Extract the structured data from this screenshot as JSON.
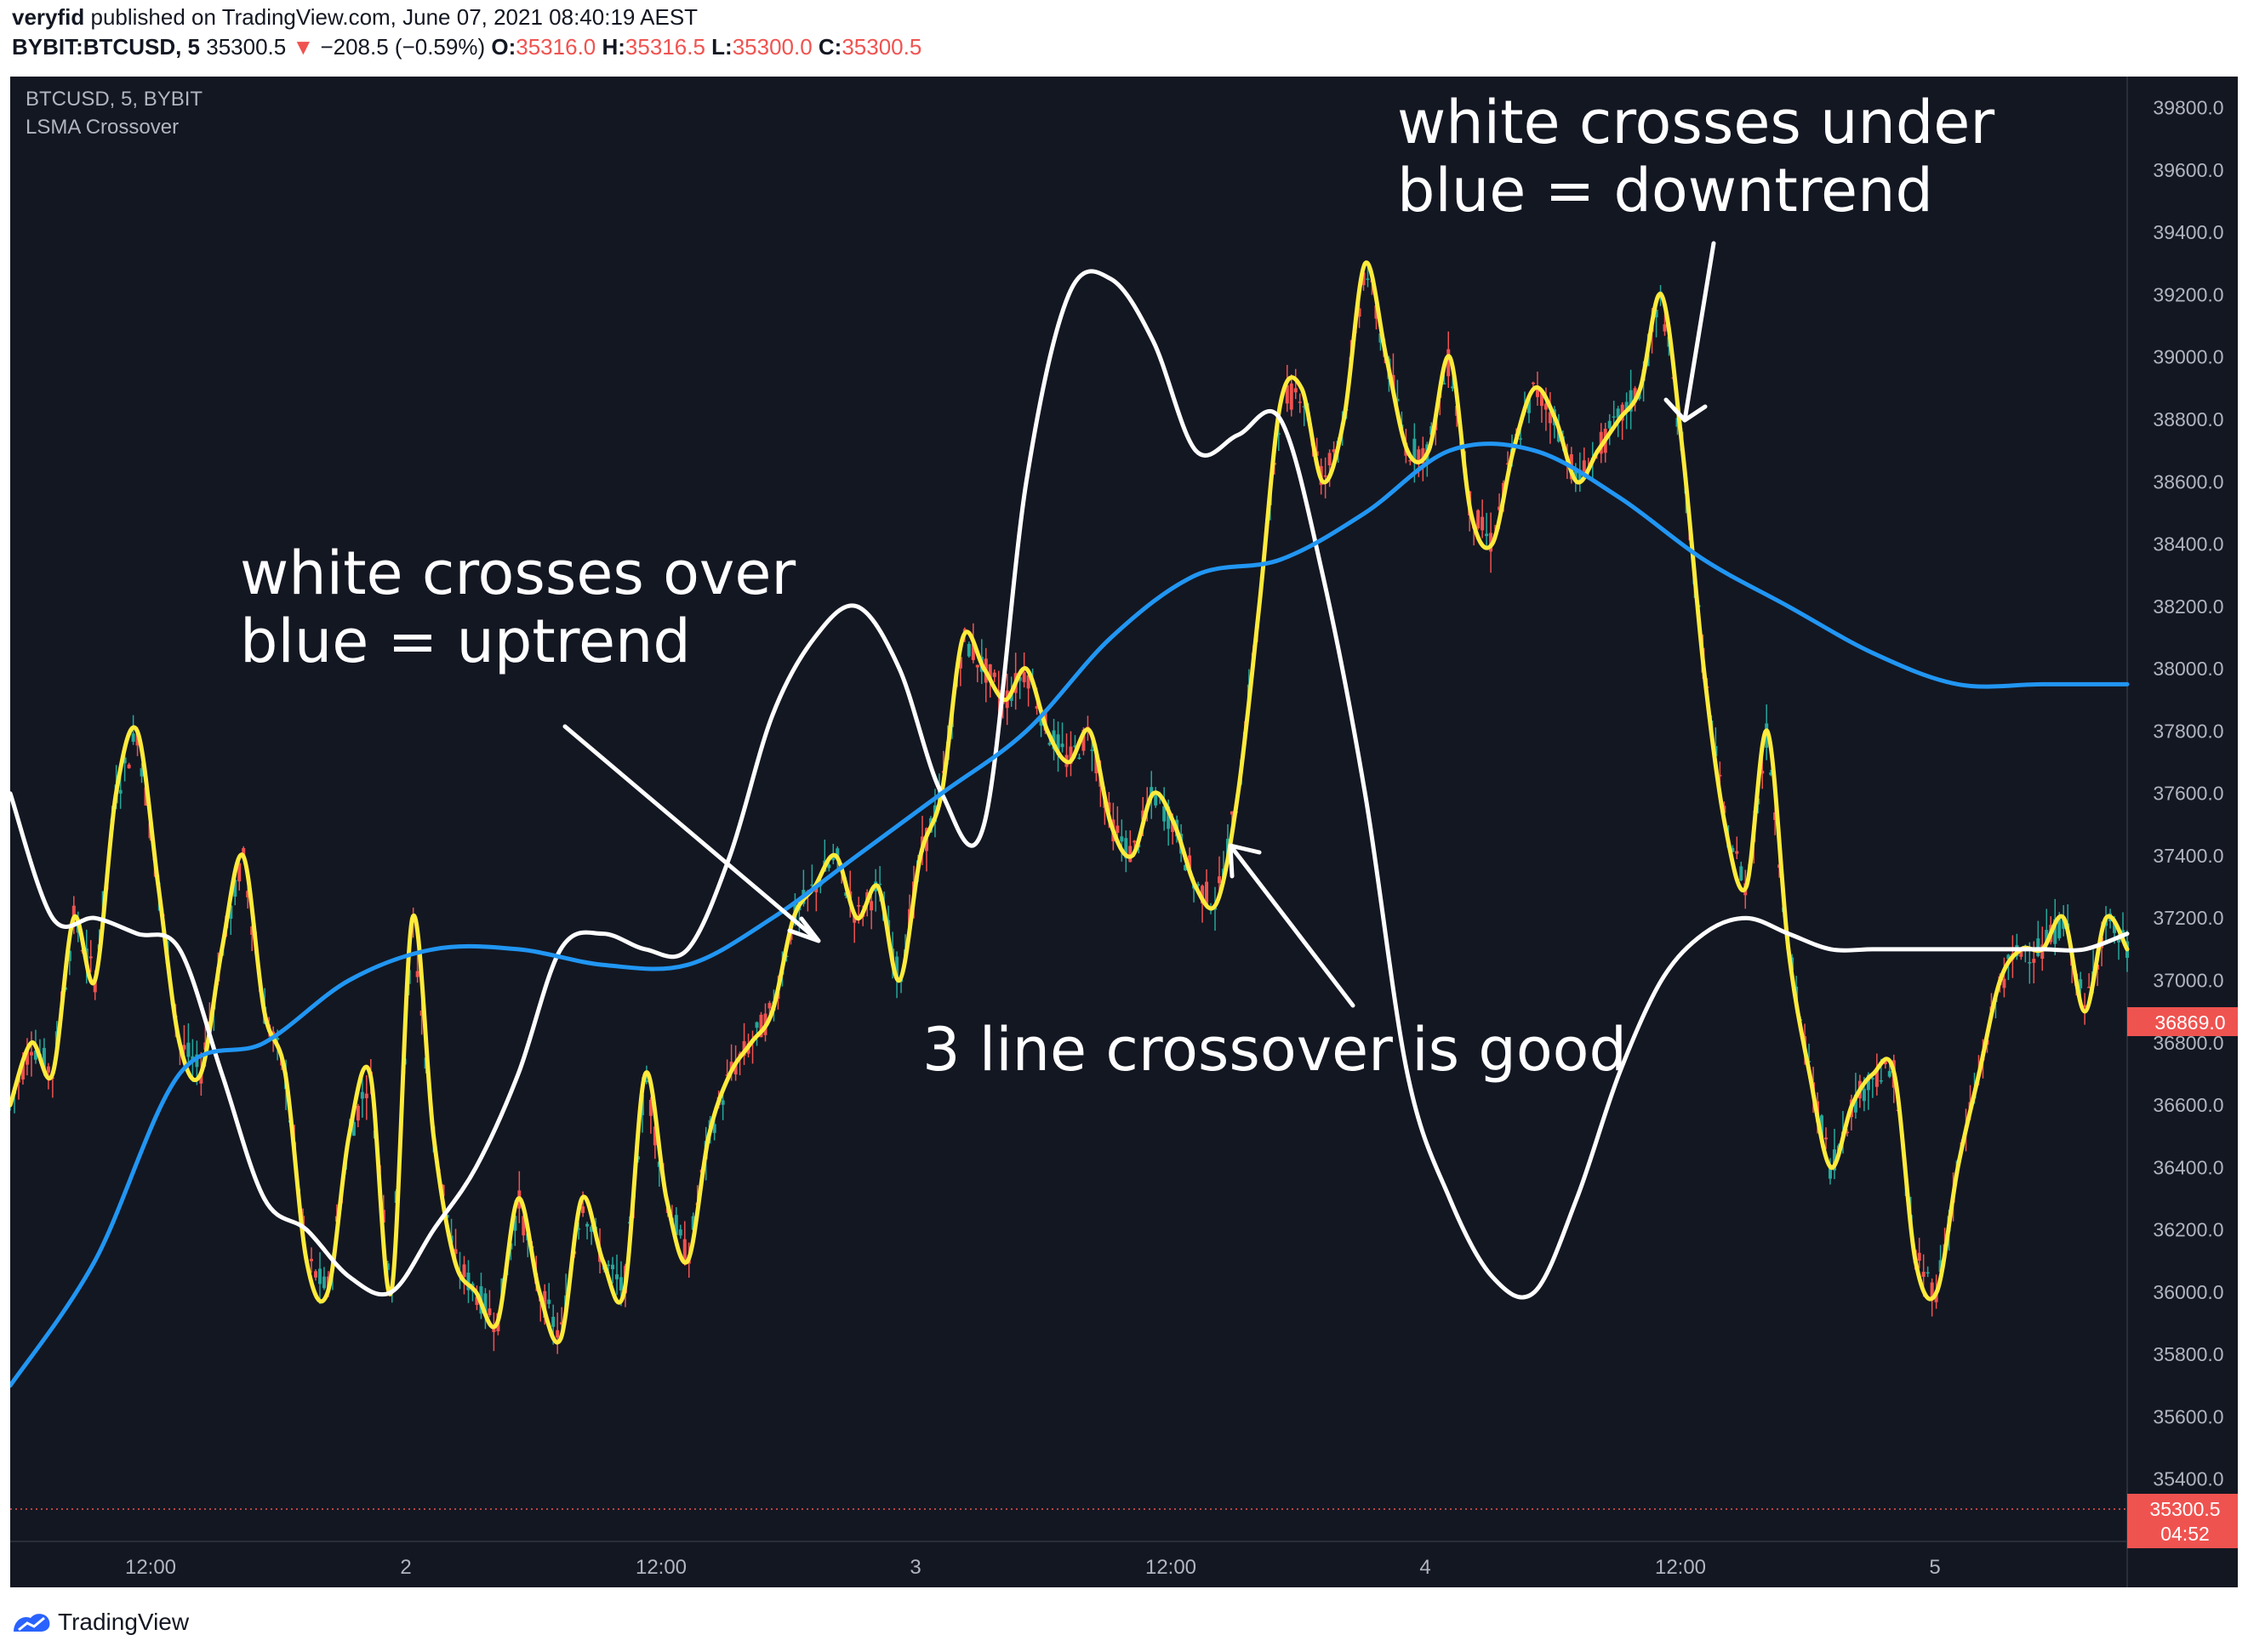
{
  "header": {
    "publisher_name": "veryfid",
    "publisher_rest": " published on TradingView.com, June 07, 2021 08:40:19 AEST",
    "symbol": "BYBIT:BTCUSD, 5",
    "last": "35300.5",
    "change": "−208.5 (−0.59%)",
    "o_label": "O:",
    "o": "35316.0",
    "h_label": "H:",
    "h": "35316.5",
    "l_label": "L:",
    "l": "35300.0",
    "c_label": "C:",
    "c": "35300.5"
  },
  "legend": {
    "symbol": "BTCUSD, 5, BYBIT",
    "indicator": "LSMA Crossover"
  },
  "annotations": [
    {
      "text": "white crosses over\nblue = uptrend"
    },
    {
      "text": "white crosses under\nblue = downtrend"
    },
    {
      "text": "3 line crossover is good"
    }
  ],
  "price_labels": {
    "current": "36869.0",
    "last": "35300.5",
    "countdown": "04:52"
  },
  "footer": {
    "brand": "TradingView"
  },
  "colors": {
    "background": "#131722",
    "blue_line": "#2196f3",
    "white_line": "#ffffff",
    "yellow_line": "#ffeb3b",
    "up": "#26a69a",
    "down": "#ef5350"
  },
  "chart_data": {
    "type": "line",
    "title": "BTCUSD, 5, BYBIT",
    "ylim": [
      35200,
      39900
    ],
    "y_ticks": [
      "35400.0",
      "35600.0",
      "35800.0",
      "36000.0",
      "36200.0",
      "36400.0",
      "36600.0",
      "36800.0",
      "37000.0",
      "37200.0",
      "37400.0",
      "37600.0",
      "37800.0",
      "38000.0",
      "38200.0",
      "38400.0",
      "38600.0",
      "38800.0",
      "39000.0",
      "39200.0",
      "39400.0",
      "39600.0",
      "39800.0"
    ],
    "x_ticks": [
      "12:00",
      "2",
      "12:00",
      "3",
      "12:00",
      "4",
      "12:00",
      "5"
    ],
    "grid": false,
    "series": [
      {
        "color": "#ffeb3b",
        "x": [
          0,
          0.01,
          0.02,
          0.03,
          0.04,
          0.05,
          0.06,
          0.07,
          0.08,
          0.09,
          0.1,
          0.11,
          0.12,
          0.13,
          0.14,
          0.15,
          0.16,
          0.17,
          0.18,
          0.19,
          0.2,
          0.21,
          0.22,
          0.23,
          0.24,
          0.25,
          0.26,
          0.27,
          0.28,
          0.29,
          0.3,
          0.31,
          0.32,
          0.33,
          0.34,
          0.35,
          0.36,
          0.37,
          0.38,
          0.39,
          0.4,
          0.41,
          0.42,
          0.43,
          0.44,
          0.45,
          0.46,
          0.47,
          0.48,
          0.49,
          0.5,
          0.51,
          0.52,
          0.53,
          0.54,
          0.55,
          0.56,
          0.57,
          0.58,
          0.59,
          0.6,
          0.61,
          0.62,
          0.63,
          0.64,
          0.65,
          0.66,
          0.67,
          0.68,
          0.69,
          0.7,
          0.71,
          0.72,
          0.73,
          0.74,
          0.75,
          0.76,
          0.77,
          0.78,
          0.79,
          0.8,
          0.81,
          0.82,
          0.83,
          0.84,
          0.85,
          0.86,
          0.87,
          0.88,
          0.89,
          0.9,
          0.91,
          0.92,
          0.93,
          0.94,
          0.95,
          0.96,
          0.97,
          0.98,
          0.99,
          1.0
        ],
        "values": [
          36600,
          36800,
          36700,
          37200,
          37000,
          37600,
          37800,
          37300,
          36800,
          36700,
          37100,
          37400,
          36900,
          36700,
          36100,
          36000,
          36500,
          36700,
          36000,
          37200,
          36500,
          36100,
          36000,
          35900,
          36300,
          36000,
          35850,
          36300,
          36100,
          36000,
          36700,
          36300,
          36100,
          36500,
          36700,
          36800,
          36900,
          37200,
          37300,
          37400,
          37200,
          37300,
          37000,
          37400,
          37600,
          38100,
          38000,
          37900,
          38000,
          37800,
          37700,
          37800,
          37500,
          37400,
          37600,
          37500,
          37300,
          37250,
          37600,
          38200,
          38850,
          38900,
          38600,
          38800,
          39300,
          39000,
          38700,
          38700,
          39000,
          38500,
          38400,
          38700,
          38900,
          38800,
          38600,
          38700,
          38800,
          38900,
          39200,
          38700,
          38000,
          37500,
          37300,
          37800,
          37100,
          36700,
          36400,
          36600,
          36700,
          36700,
          36100,
          36000,
          36400,
          36700,
          37000,
          37100,
          37100,
          37200,
          36900,
          37200,
          37100
        ]
      },
      {
        "color": "#ffffff",
        "x": [
          0,
          0.02,
          0.04,
          0.06,
          0.08,
          0.1,
          0.12,
          0.14,
          0.16,
          0.18,
          0.2,
          0.22,
          0.24,
          0.26,
          0.28,
          0.3,
          0.32,
          0.34,
          0.36,
          0.38,
          0.4,
          0.42,
          0.44,
          0.46,
          0.48,
          0.5,
          0.52,
          0.54,
          0.56,
          0.58,
          0.6,
          0.62,
          0.64,
          0.66,
          0.68,
          0.7,
          0.72,
          0.74,
          0.76,
          0.78,
          0.8,
          0.82,
          0.84,
          0.86,
          0.88,
          0.9,
          0.92,
          0.94,
          0.96,
          0.98,
          1.0
        ],
        "values": [
          37600,
          37200,
          37200,
          37150,
          37100,
          36700,
          36300,
          36200,
          36050,
          36000,
          36200,
          36400,
          36700,
          37100,
          37150,
          37100,
          37100,
          37400,
          37850,
          38100,
          38200,
          38000,
          37600,
          37500,
          38600,
          39200,
          39250,
          39050,
          38700,
          38750,
          38800,
          38300,
          37600,
          36700,
          36300,
          36050,
          36000,
          36300,
          36700,
          37000,
          37150,
          37200,
          37150,
          37100,
          37100,
          37100,
          37100,
          37100,
          37100,
          37100,
          37150
        ]
      },
      {
        "color": "#2196f3",
        "x": [
          0,
          0.04,
          0.08,
          0.12,
          0.16,
          0.2,
          0.24,
          0.28,
          0.32,
          0.36,
          0.4,
          0.44,
          0.48,
          0.52,
          0.56,
          0.6,
          0.64,
          0.68,
          0.72,
          0.76,
          0.8,
          0.84,
          0.88,
          0.92,
          0.96,
          1.0
        ],
        "values": [
          35700,
          36100,
          36700,
          36800,
          37000,
          37100,
          37100,
          37050,
          37050,
          37200,
          37400,
          37600,
          37800,
          38100,
          38300,
          38350,
          38500,
          38700,
          38700,
          38550,
          38350,
          38200,
          38050,
          37950,
          37950,
          37950
        ]
      }
    ]
  }
}
